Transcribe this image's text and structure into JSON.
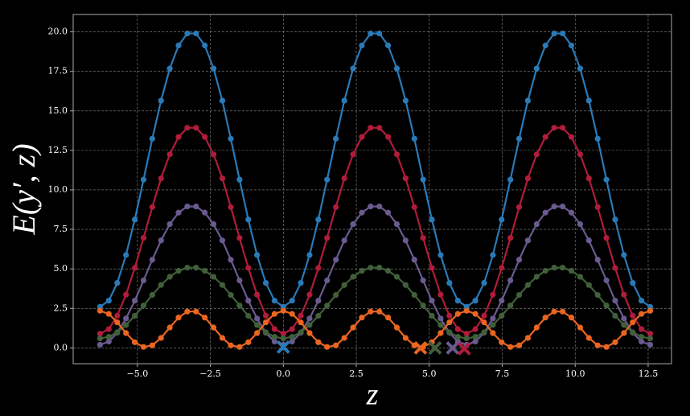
{
  "chart_data": {
    "type": "line",
    "xlabel": "z",
    "ylabel": "E(y′, z)",
    "x": [
      -6.28,
      -5.98,
      -5.69,
      -5.39,
      -5.09,
      -4.79,
      -4.49,
      -4.19,
      -3.89,
      -3.59,
      -3.29,
      -2.99,
      -2.69,
      -2.39,
      -2.09,
      -1.8,
      -1.5,
      -1.2,
      -0.9,
      -0.6,
      -0.3,
      0,
      0.3,
      0.6,
      0.9,
      1.2,
      1.5,
      1.8,
      2.09,
      2.39,
      2.69,
      2.99,
      3.29,
      3.59,
      3.89,
      4.19,
      4.49,
      4.79,
      5.09,
      5.39,
      5.69,
      5.98,
      6.28,
      6.58,
      6.88,
      7.18,
      7.48,
      7.78,
      8.08,
      8.38,
      8.68,
      8.98,
      9.28,
      9.57,
      9.87,
      10.17,
      10.47,
      10.77,
      11.07,
      11.37,
      11.67,
      11.97,
      12.27,
      12.57
    ],
    "series": [
      {
        "color": "#2a7ab8",
        "values": [
          2.6,
          2.99,
          4.11,
          5.88,
          8.12,
          10.65,
          13.24,
          15.65,
          17.68,
          19.14,
          19.9,
          19.9,
          19.14,
          17.68,
          15.65,
          13.24,
          10.65,
          8.12,
          5.88,
          4.11,
          2.99,
          2.6,
          2.99,
          4.11,
          5.88,
          8.12,
          10.65,
          13.24,
          15.65,
          17.68,
          19.14,
          19.9,
          19.9,
          19.14,
          17.68,
          15.65,
          13.24,
          10.65,
          8.12,
          5.88,
          4.11,
          2.99,
          2.6,
          2.99,
          4.11,
          5.88,
          8.12,
          10.65,
          13.24,
          15.65,
          17.68,
          19.14,
          19.9,
          19.9,
          19.14,
          17.68,
          15.65,
          13.24,
          10.65,
          8.12,
          5.88,
          4.11,
          2.99,
          2.6
        ]
      },
      {
        "color": "#b01c3a",
        "values": [
          0.9,
          1.19,
          2.04,
          3.37,
          5.06,
          6.96,
          8.91,
          10.73,
          12.25,
          13.35,
          13.93,
          13.93,
          13.35,
          12.25,
          10.73,
          8.91,
          6.96,
          5.06,
          3.37,
          2.04,
          1.19,
          0.9,
          1.19,
          2.04,
          3.37,
          5.06,
          6.96,
          8.91,
          10.73,
          12.25,
          13.35,
          13.93,
          13.93,
          13.35,
          12.25,
          10.73,
          8.91,
          6.96,
          5.06,
          3.37,
          2.04,
          1.19,
          0.9,
          1.19,
          2.04,
          3.37,
          5.06,
          6.96,
          8.91,
          10.73,
          12.25,
          13.35,
          13.93,
          13.93,
          13.35,
          12.25,
          10.73,
          8.91,
          6.96,
          5.06,
          3.37,
          2.04,
          1.19,
          0.9
        ]
      },
      {
        "color": "#6a5a8f",
        "values": [
          0.2,
          0.4,
          0.96,
          1.86,
          2.99,
          4.27,
          5.58,
          6.8,
          7.83,
          8.56,
          8.95,
          8.95,
          8.56,
          7.83,
          6.8,
          5.58,
          4.27,
          2.99,
          1.86,
          0.96,
          0.4,
          0.2,
          0.4,
          0.96,
          1.86,
          2.99,
          4.27,
          5.58,
          6.8,
          7.83,
          8.56,
          8.95,
          8.95,
          8.56,
          7.83,
          6.8,
          5.58,
          4.27,
          2.99,
          1.86,
          0.96,
          0.4,
          0.2,
          0.4,
          0.96,
          1.86,
          2.99,
          4.27,
          5.58,
          6.8,
          7.83,
          8.56,
          8.95,
          8.95,
          8.56,
          7.83,
          6.8,
          5.58,
          4.27,
          2.99,
          1.86,
          0.96,
          0.4,
          0.2
        ]
      },
      {
        "color": "#41603a",
        "values": [
          0.6,
          0.7,
          0.99,
          1.45,
          2.03,
          2.68,
          3.35,
          3.98,
          4.5,
          4.88,
          5.08,
          5.08,
          4.88,
          4.5,
          3.98,
          3.35,
          2.68,
          2.03,
          1.45,
          0.99,
          0.7,
          0.6,
          0.7,
          0.99,
          1.45,
          2.03,
          2.68,
          3.35,
          3.98,
          4.5,
          4.88,
          5.08,
          5.08,
          4.88,
          4.5,
          3.98,
          3.35,
          2.68,
          2.03,
          1.45,
          0.99,
          0.7,
          0.6,
          0.7,
          0.99,
          1.45,
          2.03,
          2.68,
          3.35,
          3.98,
          4.5,
          4.88,
          5.08,
          5.08,
          4.88,
          4.5,
          3.98,
          3.35,
          2.68,
          2.03,
          1.45,
          0.99,
          0.7,
          0.6
        ]
      },
      {
        "color": "#ea6620",
        "values": [
          2.35,
          2.15,
          1.62,
          0.94,
          0.36,
          0.06,
          0.16,
          0.63,
          1.29,
          1.92,
          2.3,
          2.3,
          1.92,
          1.29,
          0.63,
          0.16,
          0.06,
          0.36,
          0.94,
          1.62,
          2.15,
          2.35,
          2.15,
          1.62,
          0.94,
          0.36,
          0.06,
          0.16,
          0.63,
          1.29,
          1.92,
          2.3,
          2.3,
          1.92,
          1.29,
          0.63,
          0.16,
          0.06,
          0.36,
          0.94,
          1.62,
          2.15,
          2.35,
          2.15,
          1.62,
          0.94,
          0.36,
          0.06,
          0.16,
          0.63,
          1.29,
          1.92,
          2.3,
          2.3,
          1.92,
          1.29,
          0.63,
          0.16,
          0.06,
          0.36,
          0.94,
          1.62,
          2.15,
          2.35
        ]
      }
    ],
    "markers": [
      {
        "x": 0,
        "y": 0.05,
        "color": "#2a7ab8"
      },
      {
        "x": 4.7,
        "y": 0,
        "color": "#ea6620"
      },
      {
        "x": 5.2,
        "y": 0,
        "color": "#41603a"
      },
      {
        "x": 5.8,
        "y": 0,
        "color": "#6a5a8f"
      },
      {
        "x": 6.2,
        "y": -0.05,
        "color": "#b01c3a"
      }
    ],
    "xlim": [
      -7.2,
      13.3
    ],
    "ylim": [
      -1.0,
      21.1
    ],
    "xticks": [
      {
        "value": -5,
        "label": "−5.0"
      },
      {
        "value": -2.5,
        "label": "−2.5"
      },
      {
        "value": 0,
        "label": "0.0"
      },
      {
        "value": 2.5,
        "label": "2.5"
      },
      {
        "value": 5,
        "label": "5.0"
      },
      {
        "value": 7.5,
        "label": "7.5"
      },
      {
        "value": 10,
        "label": "10.0"
      },
      {
        "value": 12.5,
        "label": "12.5"
      }
    ],
    "yticks": [
      {
        "value": 0,
        "label": "0.0"
      },
      {
        "value": 2.5,
        "label": "2.5"
      },
      {
        "value": 5,
        "label": "5.0"
      },
      {
        "value": 7.5,
        "label": "7.5"
      },
      {
        "value": 10,
        "label": "10.0"
      },
      {
        "value": 12.5,
        "label": "12.5"
      },
      {
        "value": 15,
        "label": "15.0"
      },
      {
        "value": 17.5,
        "label": "17.5"
      },
      {
        "value": 20,
        "label": "20.0"
      }
    ],
    "grid": true
  }
}
